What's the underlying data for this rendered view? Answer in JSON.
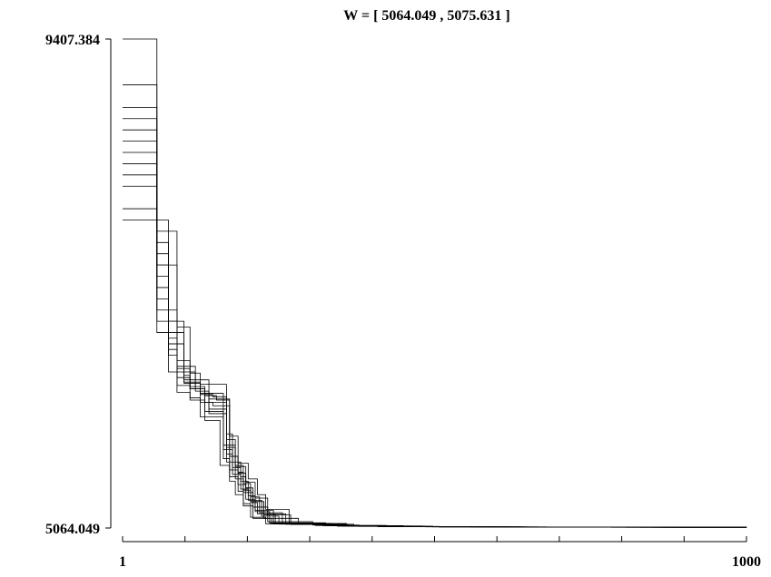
{
  "chart_data": {
    "type": "line",
    "title": "W = [ 5064.049 , 5075.631 ]",
    "xlabel": "",
    "ylabel": "",
    "x_tick_labels": [
      "1",
      "1000"
    ],
    "y_tick_labels": [
      "9407.384",
      "5064.049"
    ],
    "xlim": [
      1,
      1000
    ],
    "ylim": [
      5064.049,
      9407.384
    ],
    "x_minor_ticks": 10,
    "grid": false,
    "legend": "none",
    "line_color": "#000000",
    "series": [
      {
        "x": [
          1,
          2,
          4,
          6,
          9,
          12,
          14,
          16,
          18,
          20,
          22,
          24,
          30,
          50,
          80,
          120,
          200,
          300,
          500,
          1000
        ],
        "y": [
          9407.384,
          7400,
          6480,
          6300,
          6240,
          6200,
          6200,
          5800,
          5650,
          5520,
          5420,
          5300,
          5150,
          5095,
          5080,
          5075,
          5073,
          5072,
          5071,
          5070
        ]
      },
      {
        "x": [
          1,
          2,
          3,
          5,
          8,
          11,
          13,
          15,
          17,
          19,
          21,
          25,
          32,
          60,
          100,
          200,
          400,
          700,
          1000
        ],
        "y": [
          8800,
          7800,
          6700,
          6350,
          6250,
          6230,
          6230,
          5900,
          5700,
          5560,
          5380,
          5250,
          5120,
          5090,
          5078,
          5074,
          5072,
          5071,
          5070
        ]
      },
      {
        "x": [
          1,
          2,
          3,
          4,
          6,
          9,
          12,
          14,
          17,
          20,
          23,
          26,
          35,
          70,
          150,
          300,
          600,
          1000
        ],
        "y": [
          8200,
          7100,
          6600,
          6400,
          6300,
          6260,
          6260,
          5760,
          5600,
          5480,
          5350,
          5220,
          5110,
          5085,
          5076,
          5073,
          5071,
          5070
        ]
      },
      {
        "x": [
          1,
          2,
          3,
          5,
          7,
          10,
          13,
          15,
          18,
          21,
          24,
          28,
          40,
          80,
          160,
          320,
          640,
          1000
        ],
        "y": [
          8600,
          7600,
          6900,
          6500,
          6380,
          6340,
          6340,
          5850,
          5620,
          5460,
          5340,
          5200,
          5100,
          5082,
          5075,
          5072,
          5070,
          5069
        ]
      },
      {
        "x": [
          1,
          2,
          4,
          6,
          8,
          11,
          13,
          16,
          19,
          22,
          25,
          30,
          45,
          90,
          180,
          360,
          720,
          1000
        ],
        "y": [
          7900,
          7000,
          6550,
          6300,
          6180,
          6150,
          6150,
          5700,
          5550,
          5420,
          5300,
          5180,
          5095,
          5080,
          5074,
          5071,
          5070,
          5069
        ]
      },
      {
        "x": [
          1,
          2,
          3,
          4,
          7,
          10,
          12,
          15,
          18,
          21,
          24,
          27,
          36,
          75,
          150,
          300,
          600,
          1000
        ],
        "y": [
          9000,
          7300,
          6750,
          6450,
          6280,
          6120,
          6120,
          5650,
          5500,
          5400,
          5290,
          5190,
          5105,
          5083,
          5075,
          5072,
          5070,
          5069
        ]
      },
      {
        "x": [
          1,
          2,
          3,
          5,
          6,
          9,
          11,
          14,
          16,
          19,
          22,
          26,
          33,
          65,
          130,
          260,
          520,
          1000
        ],
        "y": [
          8400,
          7500,
          6800,
          6420,
          6320,
          6100,
          6100,
          5800,
          5580,
          5450,
          5320,
          5210,
          5108,
          5087,
          5076,
          5073,
          5071,
          5070
        ]
      },
      {
        "x": [
          1,
          2,
          4,
          5,
          8,
          10,
          13,
          15,
          17,
          20,
          23,
          29,
          38,
          85,
          170,
          340,
          680,
          1000
        ],
        "y": [
          8100,
          6900,
          6500,
          6360,
          6260,
          6080,
          6080,
          5720,
          5540,
          5410,
          5310,
          5170,
          5098,
          5081,
          5075,
          5072,
          5070,
          5069
        ]
      },
      {
        "x": [
          1,
          2,
          3,
          4,
          6,
          8,
          12,
          14,
          16,
          19,
          21,
          24,
          31,
          62,
          125,
          250,
          500,
          1000
        ],
        "y": [
          8700,
          7200,
          6650,
          6330,
          6220,
          6050,
          6050,
          5680,
          5520,
          5390,
          5280,
          5160,
          5102,
          5086,
          5076,
          5073,
          5071,
          5070
        ]
      },
      {
        "x": [
          1,
          2,
          3,
          5,
          7,
          9,
          12,
          15,
          18,
          22,
          26,
          32,
          42,
          95,
          190,
          380,
          760,
          1000
        ],
        "y": [
          8300,
          7400,
          6700,
          6380,
          6300,
          6180,
          6180,
          5780,
          5610,
          5470,
          5330,
          5190,
          5097,
          5080,
          5074,
          5071,
          5070,
          5069
        ]
      },
      {
        "x": [
          1,
          2,
          3,
          4,
          6,
          9,
          11,
          13,
          16,
          18,
          21,
          25,
          34,
          68,
          140,
          280,
          560,
          1000
        ],
        "y": [
          7800,
          6800,
          6450,
          6270,
          6200,
          6020,
          6020,
          5620,
          5480,
          5360,
          5260,
          5150,
          5100,
          5084,
          5075,
          5072,
          5070,
          5069
        ]
      },
      {
        "x": [
          1,
          2,
          4,
          6,
          8,
          10,
          14,
          16,
          19,
          23,
          27,
          31,
          44,
          88,
          175,
          350,
          700,
          1000
        ],
        "y": [
          8500,
          7700,
          6850,
          6440,
          6340,
          6210,
          6210,
          5880,
          5640,
          5500,
          5360,
          5230,
          5104,
          5082,
          5075,
          5072,
          5070,
          5069
        ]
      }
    ]
  }
}
